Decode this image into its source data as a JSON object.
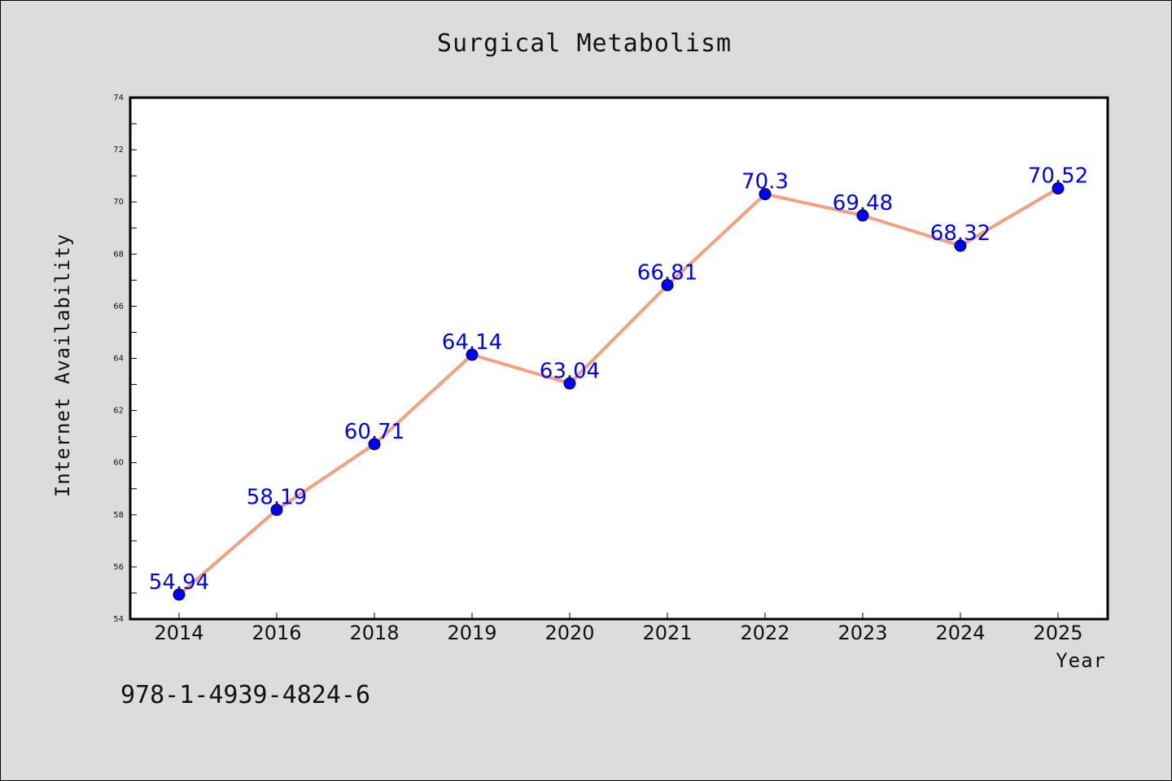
{
  "chart_data": {
    "type": "line",
    "title": "Surgical Metabolism",
    "xlabel": "Year",
    "ylabel": "Internet Availability",
    "categories": [
      "2014",
      "2016",
      "2018",
      "2019",
      "2020",
      "2021",
      "2022",
      "2023",
      "2024",
      "2025"
    ],
    "values": [
      54.94,
      58.19,
      60.71,
      64.14,
      63.04,
      66.81,
      70.3,
      69.48,
      68.32,
      70.52
    ],
    "data_labels": [
      "54.94",
      "58.19",
      "60.71",
      "64.14",
      "63.04",
      "66.81",
      "70.3",
      "69.48",
      "68.32",
      "70.52"
    ],
    "ylim": [
      54,
      74
    ],
    "yticks": [
      "54",
      "56",
      "58",
      "60",
      "62",
      "64",
      "66",
      "68",
      "70",
      "72",
      "74"
    ],
    "grid": false,
    "legend": "none",
    "line_color": "#f4a07e",
    "marker_color": "#0000ff",
    "label_color": "#0000ff"
  },
  "footer": {
    "isbn": "978-1-4939-4824-6"
  }
}
